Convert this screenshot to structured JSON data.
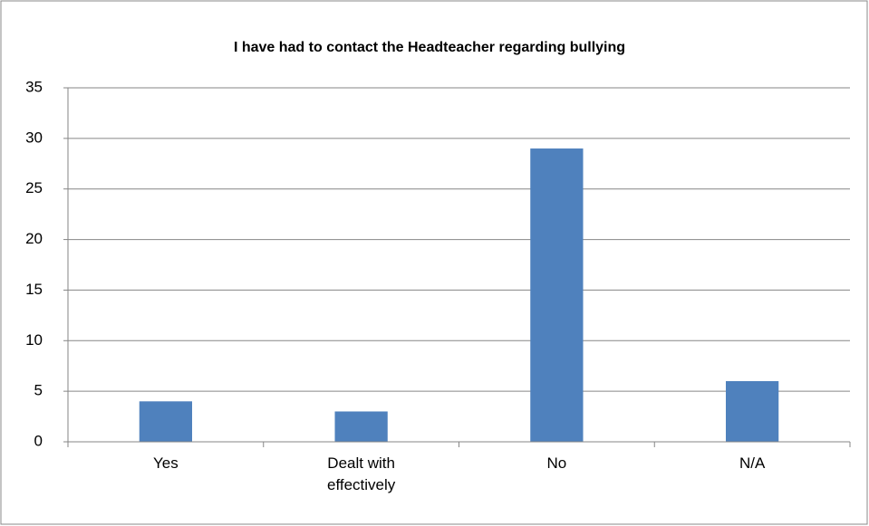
{
  "chart_data": {
    "type": "bar",
    "title": "I have had to contact the Headteacher regarding bullying",
    "categories": [
      "Yes",
      "Dealt with effectively",
      "No",
      "N/A"
    ],
    "values": [
      4,
      3,
      29,
      6
    ],
    "color": "#4f81bd",
    "ylim": [
      0,
      35
    ],
    "yticks": [
      0,
      5,
      10,
      15,
      20,
      25,
      30,
      35
    ],
    "grid": true
  }
}
